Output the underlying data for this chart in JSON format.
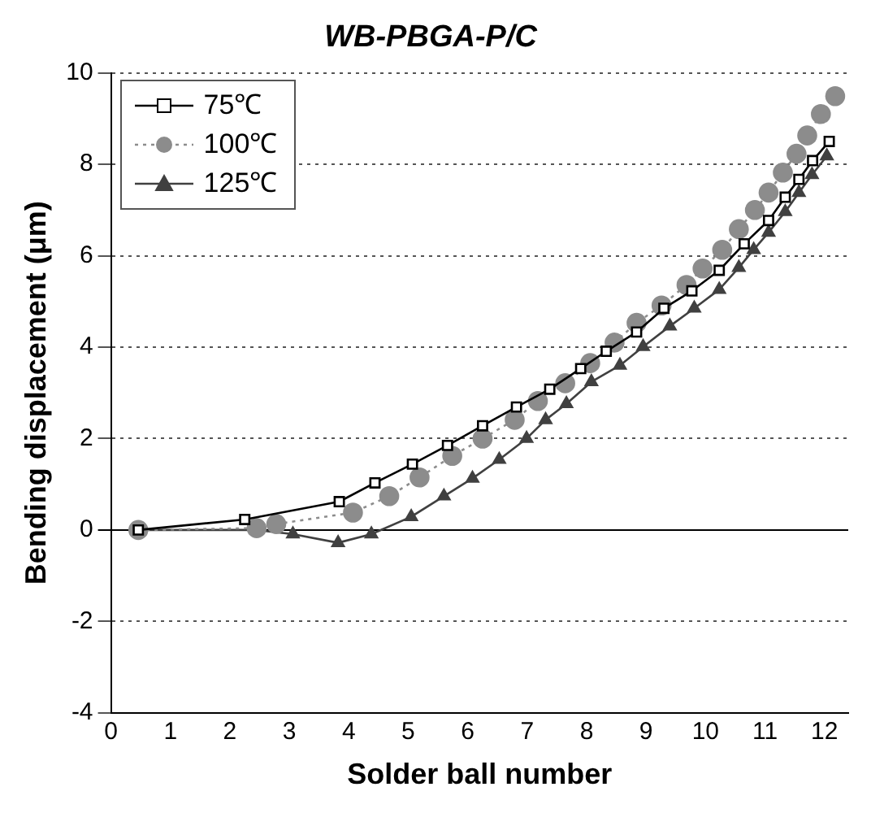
{
  "chart_data": {
    "type": "line",
    "title": "WB-PBGA-P/C",
    "xlabel": "Solder ball number",
    "ylabel": "Bending displacement (μm)",
    "xlim": [
      0,
      12.4
    ],
    "xticks": [
      0,
      1,
      2,
      3,
      4,
      5,
      6,
      7,
      8,
      9,
      10,
      11,
      12
    ],
    "ylim": [
      -4,
      10
    ],
    "yticks": [
      -4,
      -2,
      0,
      2,
      4,
      6,
      8,
      10
    ],
    "grid": "y",
    "legend": "top left",
    "series": [
      {
        "name": "75℃",
        "color": "#000000",
        "marker": "square",
        "line_style": "solid",
        "x": [
          0.46,
          2.25,
          3.84,
          4.44,
          5.07,
          5.66,
          6.25,
          6.82,
          7.38,
          7.9,
          8.33,
          8.84,
          9.3,
          9.77,
          10.23,
          10.65,
          11.06,
          11.34,
          11.57,
          11.8,
          12.08
        ],
        "values": [
          0,
          0.23,
          0.62,
          1.03,
          1.44,
          1.85,
          2.28,
          2.69,
          3.08,
          3.53,
          3.91,
          4.33,
          4.85,
          5.23,
          5.68,
          6.26,
          6.77,
          7.28,
          7.67,
          8.08,
          8.5
        ]
      },
      {
        "name": "100℃",
        "color": "#8c8c8c",
        "marker": "circle",
        "line_style": "dotted",
        "x": [
          0.46,
          2.45,
          2.78,
          4.07,
          4.68,
          5.19,
          5.74,
          6.25,
          6.79,
          7.18,
          7.64,
          8.06,
          8.47,
          8.84,
          9.26,
          9.68,
          9.95,
          10.28,
          10.56,
          10.83,
          11.06,
          11.3,
          11.53,
          11.71,
          11.94,
          12.18
        ],
        "values": [
          0,
          0.04,
          0.13,
          0.38,
          0.74,
          1.15,
          1.62,
          2.0,
          2.41,
          2.82,
          3.21,
          3.65,
          4.1,
          4.53,
          4.91,
          5.36,
          5.72,
          6.13,
          6.58,
          7.0,
          7.38,
          7.82,
          8.23,
          8.63,
          9.1,
          9.49
        ]
      },
      {
        "name": "125℃",
        "color": "#404040",
        "marker": "triangle",
        "line_style": "solid",
        "x": [
          0.46,
          2.45,
          3.06,
          3.82,
          4.38,
          5.05,
          5.6,
          6.08,
          6.53,
          6.99,
          7.31,
          7.66,
          8.08,
          8.56,
          8.95,
          9.4,
          9.81,
          10.23,
          10.56,
          10.81,
          11.06,
          11.34,
          11.57,
          11.79,
          12.04
        ],
        "values": [
          0,
          0,
          -0.09,
          -0.28,
          -0.09,
          0.29,
          0.74,
          1.13,
          1.54,
          2.0,
          2.41,
          2.76,
          3.24,
          3.6,
          4.01,
          4.46,
          4.85,
          5.26,
          5.74,
          6.13,
          6.51,
          6.96,
          7.38,
          7.77,
          8.18
        ]
      }
    ]
  }
}
